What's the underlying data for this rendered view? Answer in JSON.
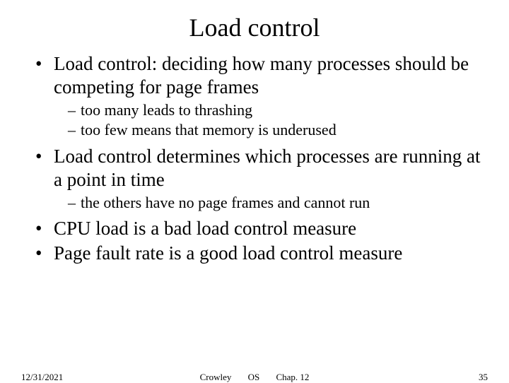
{
  "title": "Load control",
  "bullets": [
    {
      "level": 1,
      "text": "Load control: deciding how many processes should be competing for page frames"
    },
    {
      "level": 2,
      "text": "too many leads to thrashing"
    },
    {
      "level": 2,
      "text": "too few means that memory is underused"
    },
    {
      "level": 1,
      "text": "Load control determines which processes are running at a point in time"
    },
    {
      "level": 2,
      "text": "the others have no page frames and cannot run"
    },
    {
      "level": 1,
      "text": "CPU load is a bad load control measure"
    },
    {
      "level": 1,
      "text": "Page fault rate is a good load control measure"
    }
  ],
  "footer": {
    "date": "12/31/2021",
    "author": "Crowley",
    "course": "OS",
    "chapter": "Chap. 12",
    "page": "35"
  },
  "markers": {
    "l1": "•",
    "l2": "–"
  }
}
